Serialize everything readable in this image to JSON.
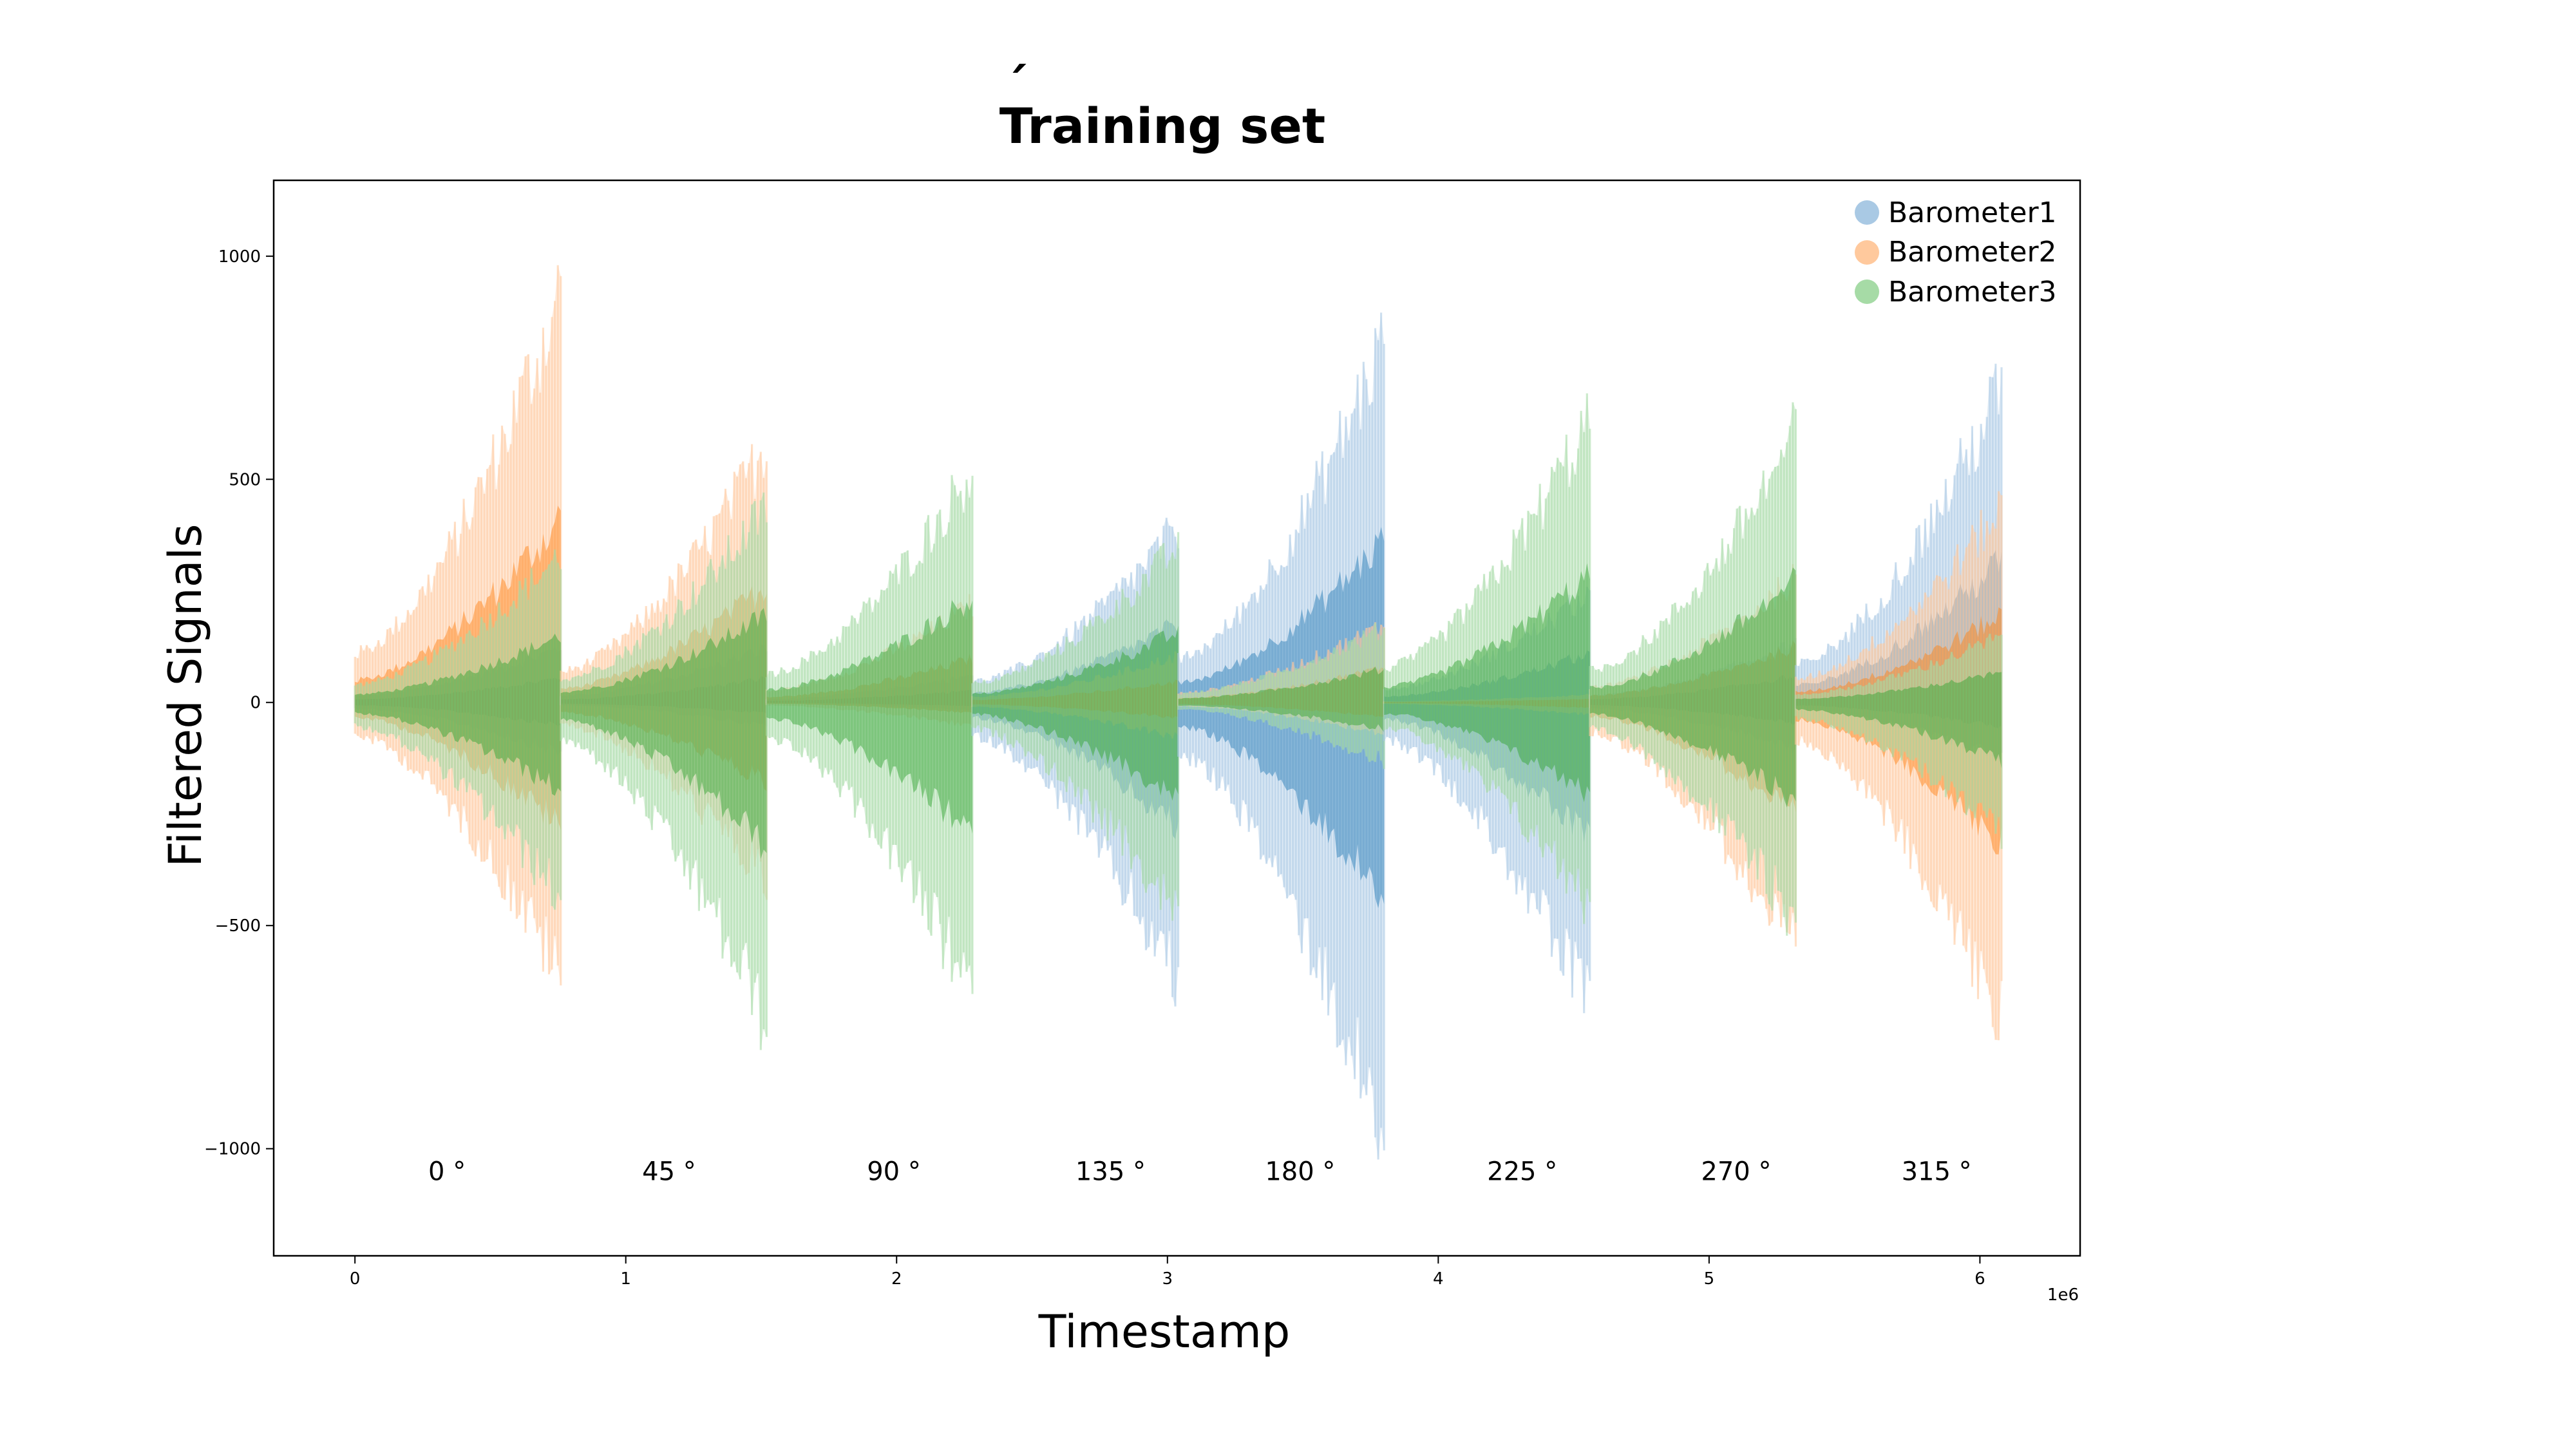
{
  "chart_data": {
    "type": "line",
    "title": "Training set",
    "title_mark": "´",
    "xlabel": "Timestamp",
    "ylabel": "Filtered Signals",
    "x_offset_text": "1e6",
    "xlim": [
      -0.3,
      6.37
    ],
    "ylim": [
      -1240,
      1170
    ],
    "xticks": [
      0,
      1,
      2,
      3,
      4,
      5,
      6
    ],
    "yticks": [
      -1000,
      -500,
      0,
      500,
      1000
    ],
    "ytick_labels": [
      "−1000",
      "−500",
      "0",
      "500",
      "1000"
    ],
    "grid": false,
    "legend_position": "top-right",
    "series": [
      {
        "name": "Barometer1",
        "color": "#1f77b4",
        "light_color": "#a9c9e4"
      },
      {
        "name": "Barometer2",
        "color": "#ff7f0e",
        "light_color": "#ffc99d"
      },
      {
        "name": "Barometer3",
        "color": "#2ca02c",
        "light_color": "#a6dba6"
      }
    ],
    "segments": [
      {
        "label": "0 °",
        "x_start": 0.0,
        "x_end": 0.76,
        "label_x": 0.34,
        "max": [
          140,
          1050,
          380
        ],
        "min": [
          -130,
          -700,
          -500
        ]
      },
      {
        "label": "45 °",
        "x_start": 0.76,
        "x_end": 1.52,
        "label_x": 1.16,
        "max": [
          140,
          660,
          500
        ],
        "min": [
          -60,
          -460,
          -820
        ]
      },
      {
        "label": "90 °",
        "x_start": 1.52,
        "x_end": 2.28,
        "label_x": 1.99,
        "max": [
          70,
          250,
          600
        ],
        "min": [
          -20,
          -60,
          -750
        ]
      },
      {
        "label": "135 °",
        "x_start": 2.28,
        "x_end": 3.04,
        "label_x": 2.79,
        "max": [
          450,
          120,
          400
        ],
        "min": [
          -720,
          -90,
          -550
        ]
      },
      {
        "label": "180 °",
        "x_start": 3.04,
        "x_end": 3.8,
        "label_x": 3.49,
        "max": [
          930,
          200,
          190
        ],
        "min": [
          -1120,
          -80,
          -150
        ]
      },
      {
        "label": "225 °",
        "x_start": 3.8,
        "x_end": 4.56,
        "label_x": 4.31,
        "max": [
          280,
          20,
          730
        ],
        "min": [
          -790,
          -30,
          -520
        ]
      },
      {
        "label": "270 °",
        "x_start": 4.56,
        "x_end": 5.32,
        "label_x": 5.1,
        "max": [
          150,
          320,
          690
        ],
        "min": [
          -120,
          -640,
          -560
        ]
      },
      {
        "label": "315 °",
        "x_start": 5.32,
        "x_end": 6.08,
        "label_x": 5.84,
        "max": [
          810,
          500,
          170
        ],
        "min": [
          -140,
          -810,
          -330
        ]
      }
    ]
  }
}
